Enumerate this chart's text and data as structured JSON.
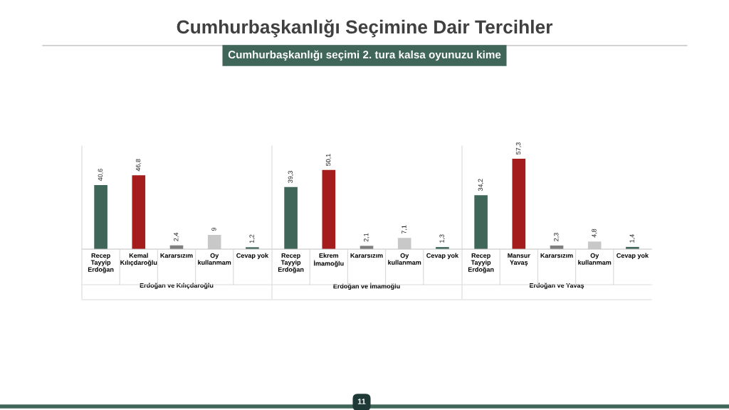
{
  "chart_data": [
    {
      "type": "bar",
      "title": "Cumhurbaşkanlığı Seçimine Dair Tercihler",
      "subtitle": "Cumhurbaşkanlığı seçimi 2. tura kalsa oyunuzu kime",
      "annotations": [
        "11"
      ],
      "xlabel": "Erdoğan ve Kılıçdaroğlu",
      "relative": false,
      "data_labels": true,
      "grid": false,
      "legend": false,
      "tick_labels": "x",
      "categories": [
        "Recep\nTayyip\nErdoğan",
        "Kemal\nKılıçdaroğlu",
        "Kararsızım",
        "Oy\nkullanmam",
        "Cevap yok"
      ],
      "values": [
        40.6,
        46.8,
        2.4,
        9,
        1.2
      ],
      "value_labels": [
        "40,6",
        "46,8",
        "2,4",
        "9",
        "1,2"
      ],
      "colors": [
        "#3f6659",
        "#a51c1c",
        "#7f7f7f",
        "#c8c8c8",
        "#3f6659"
      ]
    },
    {
      "type": "bar",
      "xlabel": "Erdoğan ve İmamoğlu",
      "data_labels": true,
      "grid": false,
      "legend": false,
      "tick_labels": "x",
      "categories": [
        "Recep\nTayyip\nErdoğan",
        "Ekrem\nİmamoğlu",
        "Kararsızım",
        "Oy\nkullanmam",
        "Cevap yok"
      ],
      "values": [
        39.3,
        50.1,
        2.1,
        7.1,
        1.3
      ],
      "value_labels": [
        "39,3",
        "50,1",
        "2,1",
        "7,1",
        "1,3"
      ],
      "colors": [
        "#3f6659",
        "#a51c1c",
        "#7f7f7f",
        "#c8c8c8",
        "#3f6659"
      ]
    },
    {
      "type": "bar",
      "xlabel": "Erdoğan ve Yavaş",
      "data_labels": true,
      "grid": false,
      "legend": false,
      "tick_labels": "x",
      "categories": [
        "Recep\nTayyip\nErdoğan",
        "Mansur\nYavaş",
        "Kararsızım",
        "Oy\nkullanmam",
        "Cevap yok"
      ],
      "values": [
        34.2,
        57.3,
        2.3,
        4.8,
        1.4
      ],
      "value_labels": [
        "34,2",
        "57,3",
        "2,3",
        "4,8",
        "1,4"
      ],
      "colors": [
        "#3f6659",
        "#a51c1c",
        "#7f7f7f",
        "#c8c8c8",
        "#3f6659"
      ]
    }
  ]
}
